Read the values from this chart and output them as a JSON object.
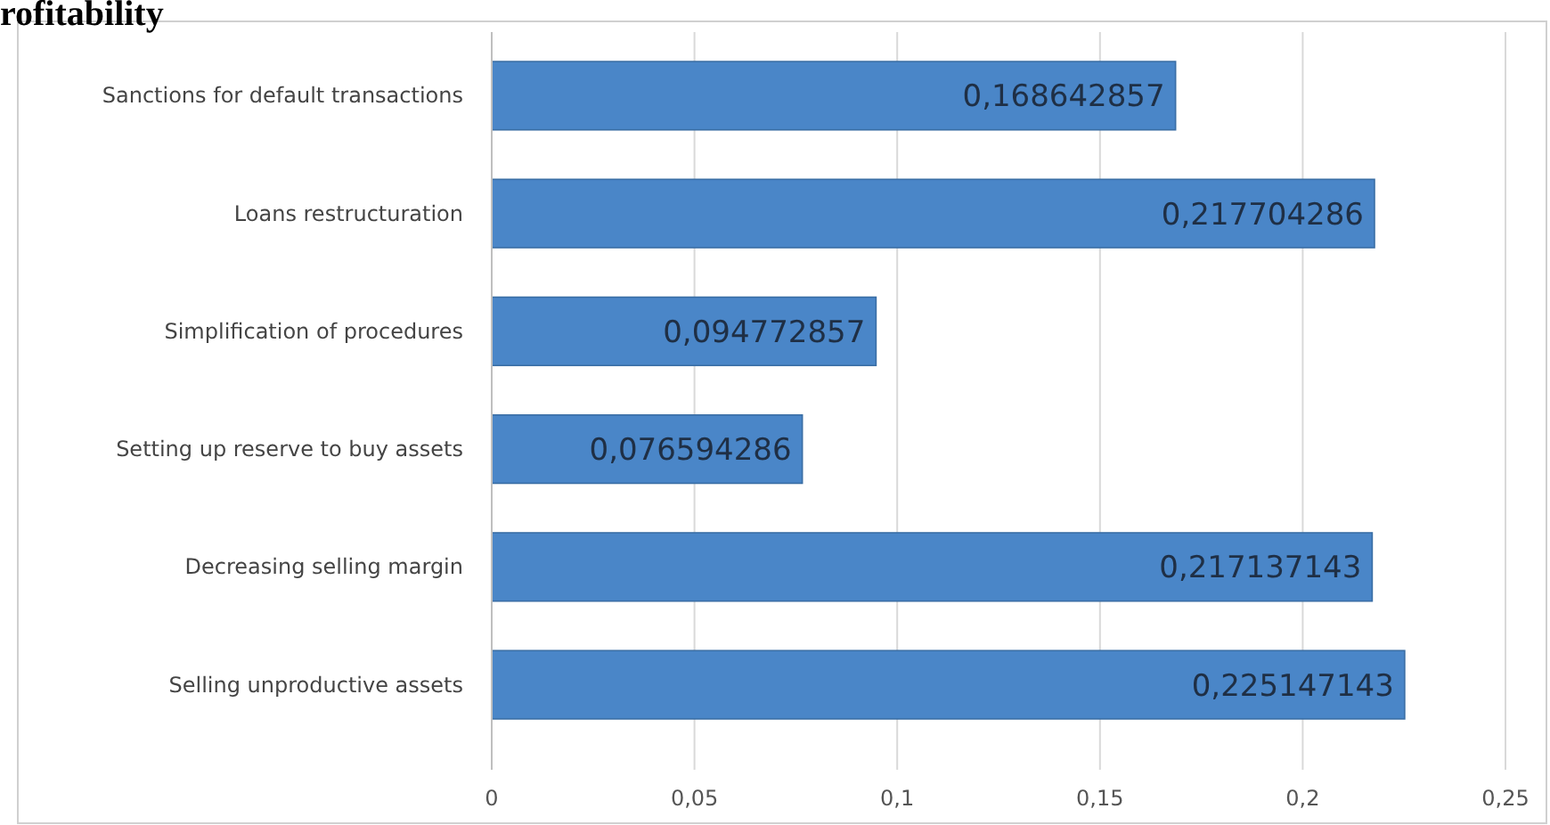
{
  "chart_data": {
    "type": "bar",
    "orientation": "horizontal",
    "title": "rofitability",
    "categories": [
      "Sanctions for default transactions",
      "Loans restructuration",
      "Simplification of  procedures",
      "Setting up reserve to buy assets",
      "Decreasing selling margin",
      "Selling unproductive assets"
    ],
    "values": [
      0.168642857,
      0.217704286,
      0.094772857,
      0.076594286,
      0.217137143,
      0.225147143
    ],
    "value_labels": [
      "0,168642857",
      "0,217704286",
      "0,094772857",
      "0,076594286",
      "0,217137143",
      "0,225147143"
    ],
    "color": "#4a86c8",
    "xlim": [
      0,
      0.25
    ],
    "xticks": [
      {
        "value": 0,
        "label": "0"
      },
      {
        "value": 0.05,
        "label": "0,05"
      },
      {
        "value": 0.1,
        "label": "0,1"
      },
      {
        "value": 0.15,
        "label": "0,15"
      },
      {
        "value": 0.2,
        "label": "0,2"
      },
      {
        "value": 0.25,
        "label": "0,25"
      }
    ],
    "grid": "x"
  }
}
